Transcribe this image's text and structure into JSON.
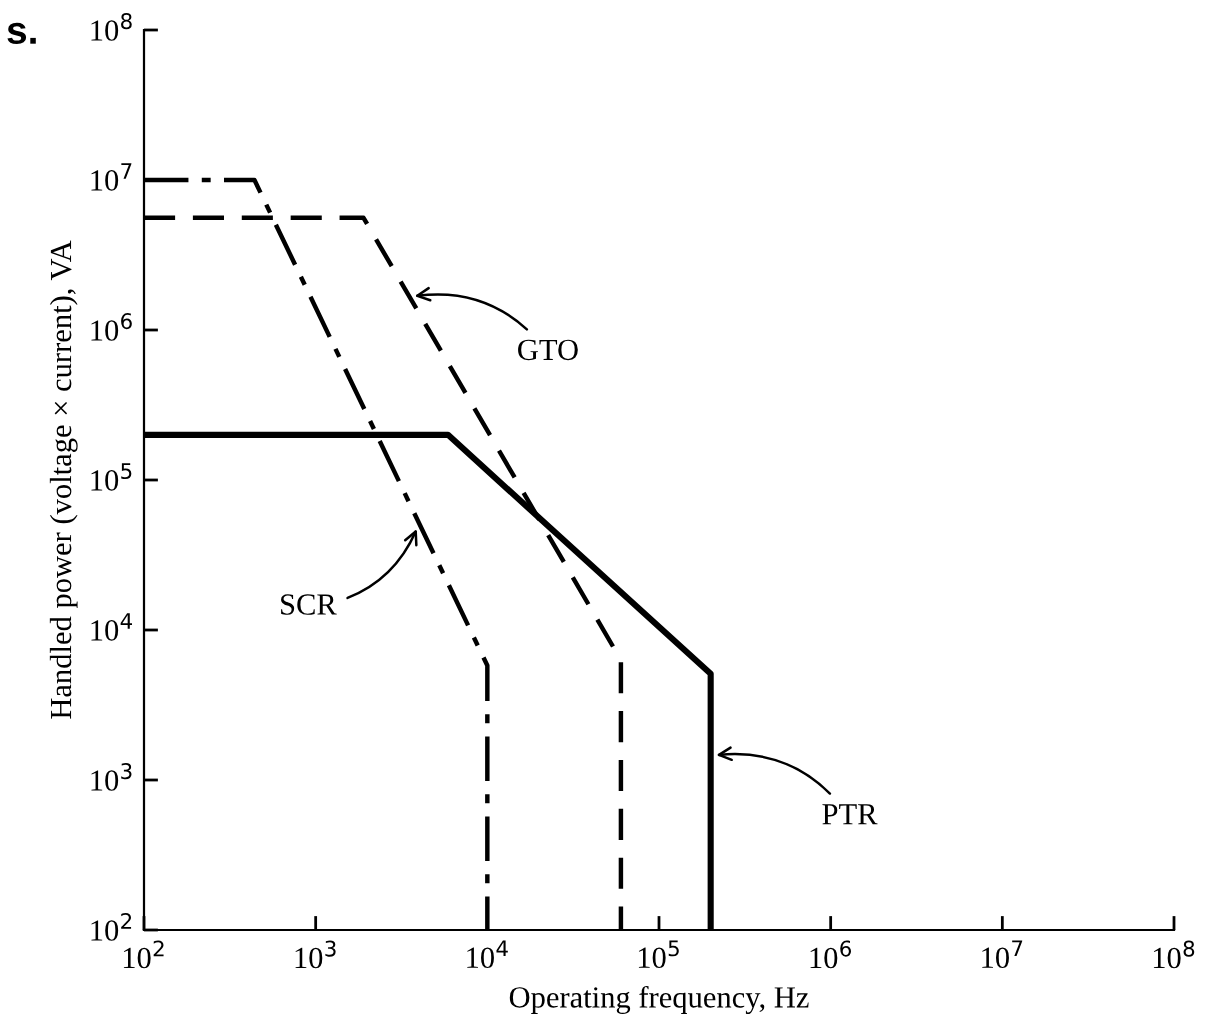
{
  "chart_data": {
    "type": "line",
    "xlabel": "Operating frequency, Hz",
    "ylabel": "Handled power (voltage × current), VA",
    "log": "xy",
    "xlim": [
      100,
      100000000
    ],
    "ylim": [
      100,
      100000000
    ],
    "xticks": [
      {
        "value": 100,
        "label": "10$^{2}$"
      },
      {
        "value": 1000,
        "label": "10$^{3}$"
      },
      {
        "value": 10000,
        "label": "10$^{4}$"
      },
      {
        "value": 100000,
        "label": "10$^{5}$"
      },
      {
        "value": 1000000,
        "label": "10$^{6}$"
      },
      {
        "value": 10000000,
        "label": "10$^{7}$"
      },
      {
        "value": 100000000,
        "label": "10$^{8}$"
      }
    ],
    "yticks": [
      {
        "value": 100,
        "label": "10$^{2}$"
      },
      {
        "value": 1000,
        "label": "10$^{3}$"
      },
      {
        "value": 10000,
        "label": "10$^{4}$"
      },
      {
        "value": 100000,
        "label": "10$^{5}$"
      },
      {
        "value": 1000000,
        "label": "10$^{6}$"
      },
      {
        "value": 10000000,
        "label": "10$^{7}$"
      },
      {
        "value": 100000000,
        "label": "10$^{8}$"
      }
    ],
    "grid": false,
    "legend": false,
    "marker": "none",
    "series": [
      {
        "color": "#000000",
        "line_style": "dashdot",
        "x": [
          100,
          440,
          10000,
          10000
        ],
        "values": [
          10000000,
          10000000,
          5800,
          100
        ]
      },
      {
        "color": "#000000",
        "line_style": "dashed",
        "x": [
          100,
          1900,
          60000,
          60000
        ],
        "values": [
          5600000,
          5600000,
          6300,
          100
        ]
      },
      {
        "color": "#000000",
        "line_style": "solid",
        "x": [
          100,
          5900,
          200000,
          200000
        ],
        "values": [
          200000,
          200000,
          5100,
          100
        ]
      }
    ],
    "annotations": [
      "s.",
      {
        "text": "SCR",
        "x": 4000,
        "y": 51000
      },
      {
        "text": "GTO",
        "x": 3500,
        "y": 1660000
      },
      {
        "text": "PTR",
        "x": 200000,
        "y": 1450
      }
    ]
  }
}
